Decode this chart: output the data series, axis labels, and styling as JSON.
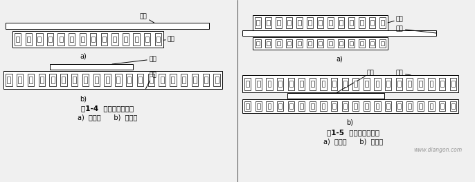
{
  "bg_color": "#f0f0f0",
  "line_color": "#000000",
  "fig_width": 6.86,
  "fig_height": 2.64,
  "dpi": 100,
  "left_title": "图1-4  单边型直线电机",
  "left_subtitle": "a)  短初级      b)  短次级",
  "right_title": "图1-5  双边型直线电机",
  "right_subtitle": "a)  短初级      b)  短次级",
  "watermark": "www.diangon.com",
  "label_ci_ji": "次级",
  "label_chu_ji": "初级"
}
